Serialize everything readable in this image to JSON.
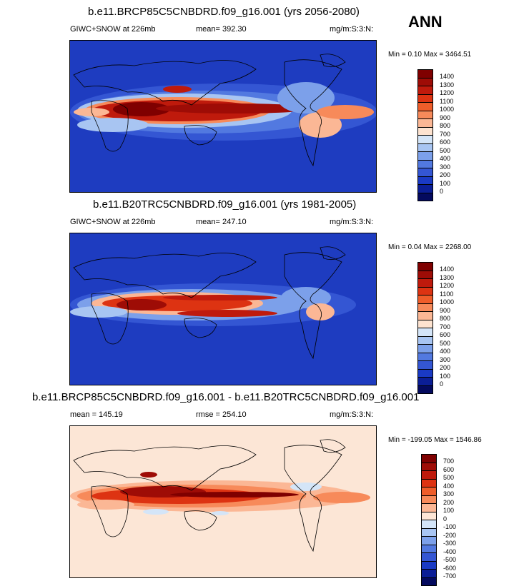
{
  "season": "ANN",
  "panels": [
    {
      "title": "b.e11.BRCP85C5CNBDRD.f09_g16.001 (yrs 2056-2080)",
      "variable": "GIWC+SNOW at 226mb",
      "stat_label": "mean= 392.30",
      "units": "mg/m:S:3:N:",
      "minmax": "Min =   0.10 Max = 3464.51",
      "levels": [
        "1400",
        "1300",
        "1200",
        "1100",
        "1000",
        "900",
        "800",
        "700",
        "600",
        "500",
        "400",
        "300",
        "200",
        "100",
        "0"
      ]
    },
    {
      "title": "b.e11.B20TRC5CNBDRD.f09_g16.001 (yrs 1981-2005)",
      "variable": "GIWC+SNOW at 226mb",
      "stat_label": "mean= 247.10",
      "units": "mg/m:S:3:N:",
      "minmax": "Min =   0.04 Max = 2268.00",
      "levels": [
        "1400",
        "1300",
        "1200",
        "1100",
        "1000",
        "900",
        "800",
        "700",
        "600",
        "500",
        "400",
        "300",
        "200",
        "100",
        "0"
      ]
    },
    {
      "title": "b.e11.BRCP85C5CNBDRD.f09_g16.001 - b.e11.B20TRC5CNBDRD.f09_g16.001",
      "mean_label": "mean = 145.19",
      "rmse_label": "rmse = 254.10",
      "units": "mg/m:S:3:N:",
      "minmax": "Min = -199.05 Max = 1546.86",
      "levels": [
        "700",
        "600",
        "500",
        "400",
        "300",
        "200",
        "100",
        "0",
        "-100",
        "-200",
        "-300",
        "-400",
        "-500",
        "-600",
        "-700"
      ]
    }
  ],
  "colors": {
    "abs_scale": [
      "#7f0000",
      "#9e0c06",
      "#bf1a0c",
      "#dd3312",
      "#ef5d2a",
      "#f78a5a",
      "#fbb795",
      "#fde3d0",
      "#d4e5f8",
      "#a8c5f2",
      "#7ca0ea",
      "#5279e0",
      "#3456d3",
      "#1a3ac4",
      "#0b1e96",
      "#040a5e"
    ],
    "diff_scale": [
      "#7f0000",
      "#9e0c06",
      "#bf1a0c",
      "#dd3312",
      "#ef5d2a",
      "#f78a5a",
      "#fbb795",
      "#fde6d6",
      "#d4e5f8",
      "#a8c5f2",
      "#7ca0ea",
      "#5279e0",
      "#3456d3",
      "#1a3ac4",
      "#0b1e96",
      "#040a5e"
    ],
    "map_background_abs": "#1e3cc0",
    "map_background_diff": "#fce6d6"
  }
}
